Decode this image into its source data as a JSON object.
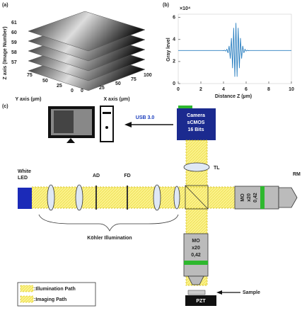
{
  "panel_a": {
    "label": "(a)",
    "z_axis_title": "Z axis (Image Number)",
    "y_axis_title": "Y axis (µm)",
    "x_axis_title": "X axis (µm)",
    "z_ticks": [
      61,
      60,
      59,
      58,
      57
    ],
    "y_ticks": [
      75,
      50,
      25,
      0
    ],
    "x_ticks": [
      0,
      25,
      50,
      75,
      100
    ]
  },
  "chart_data": {
    "type": "line",
    "label": "(b)",
    "multiplier": "×10⁴",
    "xlabel": "Distance Z (µm)",
    "ylabel": "Gray level",
    "xlim": [
      0,
      10
    ],
    "ylim": [
      0,
      6.3
    ],
    "xticks": [
      0,
      2,
      4,
      6,
      8,
      10
    ],
    "yticks": [
      0,
      2,
      4,
      6
    ],
    "series": [
      {
        "color": "#2a7fc0",
        "x": [
          0,
          3.9,
          4.0,
          4.1,
          4.2,
          4.3,
          4.4,
          4.5,
          4.6,
          4.7,
          4.8,
          4.9,
          5.0,
          5.1,
          5.2,
          5.3,
          5.4,
          5.5,
          5.6,
          5.7,
          5.8,
          5.9,
          6.0,
          6.1,
          6.2,
          6.3,
          10
        ],
        "values": [
          3.0,
          3.0,
          2.99,
          3.02,
          2.95,
          3.11,
          2.78,
          3.42,
          2.27,
          4.13,
          1.4,
          5.05,
          0.62,
          5.5,
          0.62,
          5.05,
          1.4,
          4.13,
          2.27,
          3.42,
          2.78,
          3.11,
          2.95,
          3.02,
          2.99,
          3.0,
          3.0
        ]
      }
    ]
  },
  "panel_c": {
    "label": "(c)",
    "usb": "USB 3.0",
    "camera": [
      "Camera",
      "sCMOS",
      "16 Bits"
    ],
    "led": [
      "White",
      "LED"
    ],
    "ad": "AD",
    "fd": "FD",
    "tl": "TL",
    "rm": "RM",
    "mo_side": [
      "MO",
      "x20",
      "0,42"
    ],
    "mo_bottom": [
      "MO",
      "x20",
      "0,42"
    ],
    "kohler": "Köhler Illumination",
    "sample": "Sample",
    "pzt": "PZT",
    "legend": [
      ":Illumination Path",
      ":Imaging Path"
    ]
  }
}
